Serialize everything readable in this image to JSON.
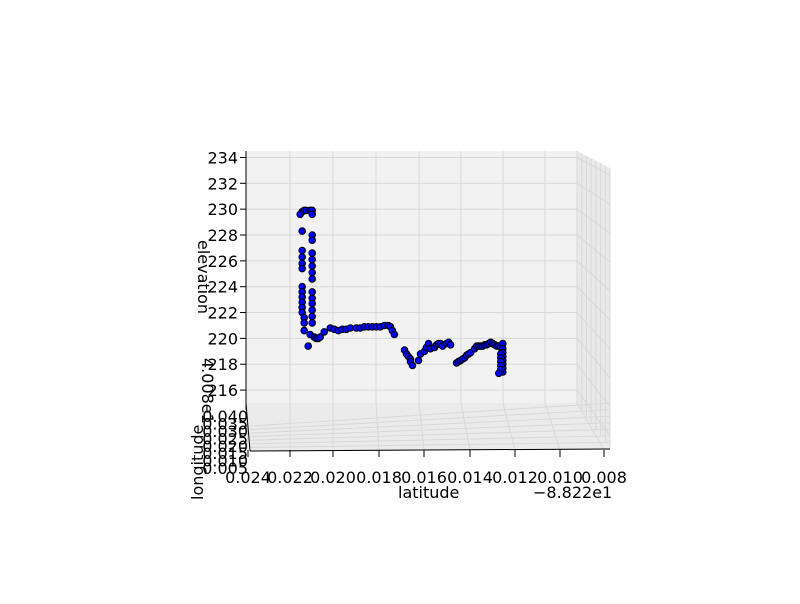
{
  "chart_data": {
    "type": "scatter",
    "projection": "3d",
    "xlabel": "latitude",
    "ylabel": "longitude",
    "zlabel": "elevation",
    "x_offset_label": "−8.822e1",
    "y_offset_label": "4.008e1",
    "x_ticks": [
      "0.024",
      "0.022",
      "0.020",
      "0.018",
      "0.016",
      "0.014",
      "0.012",
      "0.010",
      "0.008"
    ],
    "y_ticks": [
      "0.005",
      "0.010",
      "0.015",
      "0.020",
      "0.025",
      "0.030",
      "0.035",
      "0.040"
    ],
    "z_ticks": [
      "216",
      "218",
      "220",
      "222",
      "224",
      "226",
      "228",
      "230",
      "232",
      "234"
    ],
    "zlim": [
      215,
      234.5
    ],
    "grid": true,
    "marker_color": "#0000ff",
    "marker_edge_color": "#000000",
    "pane_color": "#f2f2f2",
    "points_note_units": "x = latitude tick value (0.022 etc., offset -88.22), z = elevation",
    "points": [
      [
        0.0217,
        229.8
      ],
      [
        0.0216,
        229.9
      ],
      [
        0.0215,
        229.9
      ],
      [
        0.0213,
        229.9
      ],
      [
        0.0212,
        229.9
      ],
      [
        0.0212,
        229.6
      ],
      [
        0.0218,
        229.6
      ],
      [
        0.0217,
        228.3
      ],
      [
        0.0212,
        228.0
      ],
      [
        0.0212,
        227.6
      ],
      [
        0.0217,
        226.8
      ],
      [
        0.0217,
        226.3
      ],
      [
        0.0217,
        225.8
      ],
      [
        0.0217,
        225.4
      ],
      [
        0.0212,
        226.6
      ],
      [
        0.0212,
        226.1
      ],
      [
        0.0212,
        225.6
      ],
      [
        0.0212,
        225.1
      ],
      [
        0.0212,
        224.6
      ],
      [
        0.0217,
        224.0
      ],
      [
        0.0217,
        223.6
      ],
      [
        0.0217,
        223.2
      ],
      [
        0.0217,
        222.8
      ],
      [
        0.0217,
        222.4
      ],
      [
        0.0217,
        222.0
      ],
      [
        0.0216,
        221.6
      ],
      [
        0.0216,
        221.2
      ],
      [
        0.0212,
        223.6
      ],
      [
        0.0212,
        223.1
      ],
      [
        0.0212,
        222.7
      ],
      [
        0.0212,
        222.2
      ],
      [
        0.0212,
        221.7
      ],
      [
        0.0212,
        221.2
      ],
      [
        0.0216,
        220.6
      ],
      [
        0.0213,
        220.3
      ],
      [
        0.0211,
        220.1
      ],
      [
        0.021,
        220.0
      ],
      [
        0.0209,
        220.0
      ],
      [
        0.0208,
        220.1
      ],
      [
        0.0214,
        219.4
      ],
      [
        0.0206,
        220.5
      ],
      [
        0.0203,
        220.8
      ],
      [
        0.0201,
        220.7
      ],
      [
        0.0199,
        220.6
      ],
      [
        0.0197,
        220.7
      ],
      [
        0.0195,
        220.7
      ],
      [
        0.0193,
        220.8
      ],
      [
        0.019,
        220.8
      ],
      [
        0.0188,
        220.8
      ],
      [
        0.0186,
        220.9
      ],
      [
        0.0184,
        220.9
      ],
      [
        0.0182,
        220.9
      ],
      [
        0.018,
        220.9
      ],
      [
        0.0178,
        220.9
      ],
      [
        0.0176,
        221.0
      ],
      [
        0.0174,
        221.0
      ],
      [
        0.0173,
        220.9
      ],
      [
        0.0172,
        220.6
      ],
      [
        0.0171,
        220.3
      ],
      [
        0.0166,
        219.1
      ],
      [
        0.0165,
        218.8
      ],
      [
        0.0164,
        218.6
      ],
      [
        0.0163,
        218.4
      ],
      [
        0.0163,
        218.2
      ],
      [
        0.0162,
        217.9
      ],
      [
        0.0159,
        218.3
      ],
      [
        0.0158,
        218.8
      ],
      [
        0.0156,
        219.0
      ],
      [
        0.0155,
        219.3
      ],
      [
        0.0154,
        219.6
      ],
      [
        0.0153,
        219.2
      ],
      [
        0.0151,
        219.3
      ],
      [
        0.015,
        219.5
      ],
      [
        0.0149,
        219.6
      ],
      [
        0.0148,
        219.6
      ],
      [
        0.0147,
        219.4
      ],
      [
        0.0145,
        219.6
      ],
      [
        0.0144,
        219.7
      ],
      [
        0.0143,
        219.5
      ],
      [
        0.014,
        218.1
      ],
      [
        0.0139,
        218.2
      ],
      [
        0.0138,
        218.3
      ],
      [
        0.0137,
        218.4
      ],
      [
        0.0136,
        218.5
      ],
      [
        0.0135,
        218.7
      ],
      [
        0.0134,
        218.8
      ],
      [
        0.0133,
        218.9
      ],
      [
        0.0131,
        219.2
      ],
      [
        0.013,
        219.4
      ],
      [
        0.0129,
        219.4
      ],
      [
        0.0128,
        219.4
      ],
      [
        0.0127,
        219.4
      ],
      [
        0.0126,
        219.5
      ],
      [
        0.0125,
        219.5
      ],
      [
        0.0124,
        219.6
      ],
      [
        0.0123,
        219.7
      ],
      [
        0.0122,
        219.6
      ],
      [
        0.0121,
        219.5
      ],
      [
        0.012,
        219.4
      ],
      [
        0.0119,
        219.4
      ],
      [
        0.0118,
        219.3
      ],
      [
        0.0117,
        219.6
      ],
      [
        0.0117,
        219.2
      ],
      [
        0.0117,
        218.9
      ],
      [
        0.0117,
        218.6
      ],
      [
        0.0117,
        218.3
      ],
      [
        0.0117,
        218.0
      ],
      [
        0.0117,
        217.7
      ],
      [
        0.0117,
        217.4
      ],
      [
        0.0118,
        218.8
      ],
      [
        0.0118,
        218.5
      ],
      [
        0.0118,
        218.2
      ],
      [
        0.0118,
        217.9
      ],
      [
        0.0118,
        217.6
      ],
      [
        0.0119,
        217.3
      ]
    ]
  }
}
